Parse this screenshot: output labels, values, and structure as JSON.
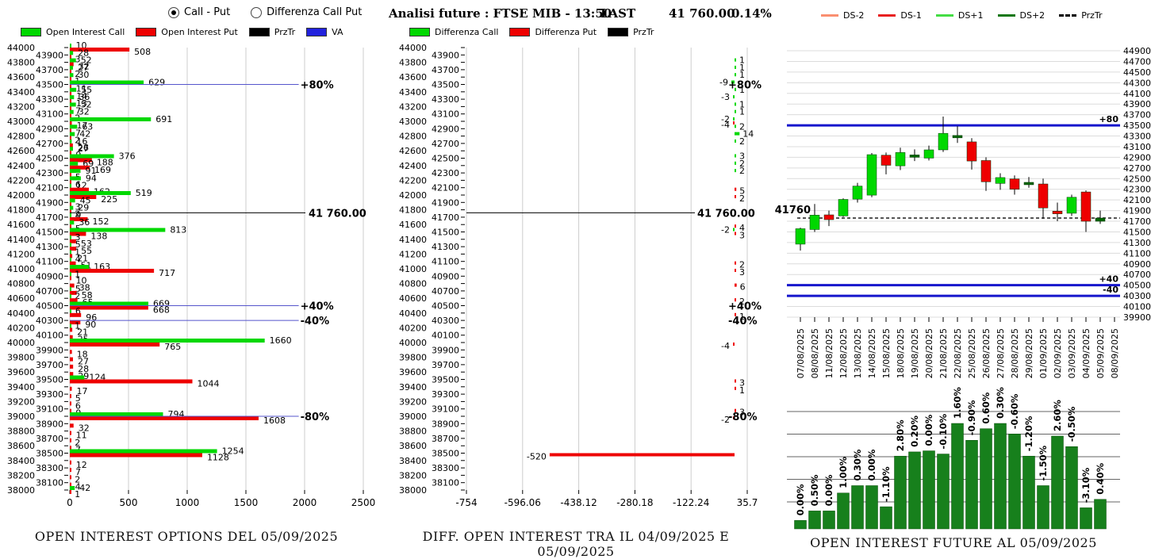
{
  "controls": {
    "radios": [
      {
        "label": "Call - Put",
        "selected": true
      },
      {
        "label": "Differenza Call Put",
        "selected": false
      }
    ]
  },
  "header": {
    "analisi": "Analisi future : FTSE MIB - 13:50",
    "last_label": "LAST",
    "last_value": "41 760.00",
    "last_change": "0.14%"
  },
  "legends": {
    "left": [
      {
        "label": "Open Interest Call",
        "color": "#00d800",
        "kind": "box"
      },
      {
        "label": "Open Interest Put",
        "color": "#ee0000",
        "kind": "box"
      },
      {
        "label": "PrzTr",
        "color": "#000000",
        "kind": "box"
      },
      {
        "label": "VA",
        "color": "#2222dd",
        "kind": "box"
      }
    ],
    "mid": [
      {
        "label": "Differenza Call",
        "color": "#00d800",
        "kind": "box"
      },
      {
        "label": "Differenza Put",
        "color": "#ee0000",
        "kind": "box"
      },
      {
        "label": "PrzTr",
        "color": "#000000",
        "kind": "box"
      }
    ],
    "right": [
      {
        "label": "DS-2",
        "color": "#fa8f70",
        "kind": "line"
      },
      {
        "label": "DS-1",
        "color": "#e82020",
        "kind": "line"
      },
      {
        "label": "DS+1",
        "color": "#44dd44",
        "kind": "line"
      },
      {
        "label": "DS+2",
        "color": "#117711",
        "kind": "line"
      },
      {
        "label": "PrzTr",
        "color": "#000000",
        "kind": "dash"
      }
    ]
  },
  "colors": {
    "call": "#00d800",
    "put": "#ee0000",
    "przt": "#000000",
    "va_line": "#5555cc",
    "blue_level": "#1515cc",
    "dark_candle": "#006600",
    "future_bar": "#17801c",
    "grid": "#cccccc",
    "grid_dark": "#666666"
  },
  "chart_data": [
    {
      "type": "bar",
      "orientation": "horizontal",
      "title": "OPEN INTEREST OPTIONS DEL 05/09/2025",
      "xlim": [
        0,
        2500
      ],
      "xticks": [
        0,
        500,
        1000,
        1500,
        2000,
        2500
      ],
      "ylim": [
        38000,
        44000
      ],
      "ystep": 100,
      "series": [
        "Open Interest Call",
        "Open Interest Put"
      ],
      "rows": [
        [
          44000,
          10,
          508
        ],
        [
          43900,
          28,
          3
        ],
        [
          43800,
          52,
          32
        ],
        [
          43700,
          27,
          2
        ],
        [
          43600,
          30,
          1
        ],
        [
          43500,
          629,
          11
        ],
        [
          43400,
          55,
          14
        ],
        [
          43300,
          36,
          13
        ],
        [
          43200,
          52,
          7
        ],
        [
          43100,
          32,
          2
        ],
        [
          43000,
          691,
          17
        ],
        [
          42900,
          63,
          7
        ],
        [
          42800,
          42,
          2
        ],
        [
          42700,
          16,
          26
        ],
        [
          42600,
          27,
          9
        ],
        [
          42500,
          376,
          188
        ],
        [
          42400,
          69,
          169
        ],
        [
          42300,
          91,
          5
        ],
        [
          42200,
          94,
          6
        ],
        [
          42100,
          12,
          162
        ],
        [
          42000,
          519,
          225
        ],
        [
          41900,
          45,
          3
        ],
        [
          41800,
          29,
          2
        ],
        [
          41700,
          9,
          152
        ],
        [
          41600,
          36,
          5
        ],
        [
          41500,
          813,
          138
        ],
        [
          41400,
          3,
          53
        ],
        [
          41300,
          5,
          55
        ],
        [
          41200,
          1,
          21
        ],
        [
          41100,
          4,
          51
        ],
        [
          41000,
          163,
          717
        ],
        [
          40900,
          1,
          10
        ],
        [
          40800,
          0,
          38
        ],
        [
          40700,
          5,
          58
        ],
        [
          40600,
          2,
          65
        ],
        [
          40500,
          669,
          668
        ],
        [
          40400,
          6,
          96
        ],
        [
          40300,
          0,
          90
        ],
        [
          40200,
          1,
          21
        ],
        [
          40100,
          0,
          25
        ],
        [
          40000,
          1660,
          765
        ],
        [
          39900,
          0,
          18
        ],
        [
          39800,
          0,
          27
        ],
        [
          39700,
          0,
          28
        ],
        [
          39600,
          0,
          29
        ],
        [
          39500,
          124,
          1044
        ],
        [
          39400,
          0,
          17
        ],
        [
          39300,
          0,
          5
        ],
        [
          39200,
          0,
          6
        ],
        [
          39100,
          0,
          9
        ],
        [
          39000,
          794,
          1608
        ],
        [
          38900,
          0,
          32
        ],
        [
          38800,
          0,
          11
        ],
        [
          38700,
          0,
          2
        ],
        [
          38600,
          0,
          7
        ],
        [
          38500,
          1254,
          1128
        ],
        [
          38400,
          0,
          12
        ],
        [
          38300,
          0,
          7
        ],
        [
          38200,
          0,
          2
        ],
        [
          38100,
          0,
          4
        ],
        [
          38000,
          42,
          1
        ]
      ],
      "va_lines": [
        {
          "y": 43500,
          "label": "+80%"
        },
        {
          "y": 40500,
          "label": "+40%"
        },
        {
          "y": 40300,
          "label": "-40%"
        },
        {
          "y": 39000,
          "label": "-80%"
        }
      ],
      "prz_line": {
        "y": 41760,
        "label": "41 760.00"
      }
    },
    {
      "type": "bar",
      "orientation": "horizontal",
      "title": "DIFF. OPEN INTEREST TRA IL 04/09/2025 E 05/09/2025",
      "xticks": [
        "-754",
        "-596.06",
        "-438.12",
        "-280.18",
        "-122.24",
        "35.7"
      ],
      "ylim": [
        38000,
        44000
      ],
      "ystep": 100,
      "series": [
        "Differenza Call",
        "Differenza Put"
      ],
      "rows": [
        {
          "s": 43800,
          "v": 1,
          "k": "c"
        },
        {
          "s": 43700,
          "v": 1,
          "k": "c"
        },
        {
          "s": 43600,
          "v": 1,
          "k": "c"
        },
        {
          "s": 43500,
          "v": -9,
          "k": "c"
        },
        {
          "s": 43400,
          "v": 1,
          "k": "c"
        },
        {
          "s": 43300,
          "v": -3,
          "k": "c"
        },
        {
          "s": 43200,
          "v": 1,
          "k": "c"
        },
        {
          "s": 43100,
          "v": 1,
          "k": "c"
        },
        {
          "s": 43000,
          "v": -2,
          "k": "c"
        },
        {
          "s": 43000,
          "v": -4,
          "k": "p"
        },
        {
          "s": 42900,
          "v": 2,
          "k": "c"
        },
        {
          "s": 42800,
          "v": 14,
          "k": "c"
        },
        {
          "s": 42700,
          "v": 2,
          "k": "c"
        },
        {
          "s": 42500,
          "v": 3,
          "k": "c"
        },
        {
          "s": 42400,
          "v": 2,
          "k": "c"
        },
        {
          "s": 42300,
          "v": 2,
          "k": "c"
        },
        {
          "s": 42100,
          "v": 5,
          "k": "p"
        },
        {
          "s": 42000,
          "v": 2,
          "k": "p"
        },
        {
          "s": 41600,
          "v": 4,
          "k": "p"
        },
        {
          "s": 41500,
          "v": -2,
          "k": "c"
        },
        {
          "s": 41500,
          "v": 3,
          "k": "p"
        },
        {
          "s": 41100,
          "v": 2,
          "k": "p"
        },
        {
          "s": 41000,
          "v": 3,
          "k": "p"
        },
        {
          "s": 40800,
          "v": 6,
          "k": "p"
        },
        {
          "s": 40600,
          "v": 2,
          "k": "p"
        },
        {
          "s": 40400,
          "v": 1,
          "k": "p"
        },
        {
          "s": 40000,
          "v": -4,
          "k": "p"
        },
        {
          "s": 39500,
          "v": 3,
          "k": "p"
        },
        {
          "s": 39400,
          "v": 1,
          "k": "p"
        },
        {
          "s": 39100,
          "v": 3,
          "k": "p"
        },
        {
          "s": 39000,
          "v": -2,
          "k": "p"
        },
        {
          "s": 38500,
          "v": -520,
          "k": "p"
        }
      ],
      "va_labels": [
        {
          "y": 43500,
          "label": "+80%"
        },
        {
          "y": 40500,
          "label": "+40%"
        },
        {
          "y": 40300,
          "label": "-40%"
        },
        {
          "y": 39000,
          "label": "-80%"
        }
      ],
      "prz_line": {
        "y": 41760,
        "label": "41 760.00"
      }
    },
    {
      "type": "candlestick",
      "ylim": [
        39900,
        44900
      ],
      "ystep": 200,
      "dates": [
        "07/08/2025",
        "08/08/2025",
        "11/08/2025",
        "12/08/2025",
        "13/08/2025",
        "14/08/2025",
        "15/08/2025",
        "18/08/2025",
        "19/08/2025",
        "20/08/2025",
        "21/08/2025",
        "22/08/2025",
        "25/08/2025",
        "26/08/2025",
        "27/08/2025",
        "28/08/2025",
        "29/08/2025",
        "01/09/2025",
        "02/09/2025",
        "03/09/2025",
        "04/09/2025",
        "05/09/2025",
        "08/09/2025"
      ],
      "candles": [
        [
          41270,
          41580,
          41150,
          41560,
          "g"
        ],
        [
          41545,
          42025,
          41500,
          41815,
          "g"
        ],
        [
          41820,
          41900,
          41610,
          41730,
          "r"
        ],
        [
          41800,
          42130,
          41780,
          42110,
          "g"
        ],
        [
          42115,
          42420,
          42050,
          42360,
          "g"
        ],
        [
          42190,
          42980,
          42150,
          42950,
          "g"
        ],
        [
          42940,
          42990,
          42580,
          42750,
          "r"
        ],
        [
          42740,
          43080,
          42660,
          42990,
          "g"
        ],
        [
          42920,
          43050,
          42830,
          42945,
          "d"
        ],
        [
          42885,
          43120,
          42840,
          43040,
          "g"
        ],
        [
          43040,
          43665,
          43000,
          43350,
          "g"
        ],
        [
          43290,
          43485,
          43170,
          43310,
          "d"
        ],
        [
          43190,
          43260,
          42670,
          42830,
          "r"
        ],
        [
          42840,
          42900,
          42270,
          42440,
          "r"
        ],
        [
          42410,
          42600,
          42290,
          42520,
          "g"
        ],
        [
          42495,
          42560,
          42200,
          42300,
          "r"
        ],
        [
          42400,
          42530,
          42330,
          42430,
          "d"
        ],
        [
          42400,
          42500,
          41750,
          41950,
          "r"
        ],
        [
          41890,
          42050,
          41700,
          41840,
          "r"
        ],
        [
          41850,
          42200,
          41800,
          42150,
          "g"
        ],
        [
          42250,
          42280,
          41500,
          41700,
          "r"
        ],
        [
          41700,
          41900,
          41650,
          41760,
          "d"
        ]
      ],
      "levels": [
        {
          "y": 43500,
          "label": "+80"
        },
        {
          "y": 40500,
          "label": "+40"
        },
        {
          "y": 40300,
          "label": "-40"
        }
      ],
      "prz_line": {
        "y": 41760,
        "label": "41760"
      }
    },
    {
      "type": "bar",
      "title": "OPEN INTEREST FUTURE AL 05/09/2025",
      "labels": [
        "0.00%",
        "0.50%",
        "0.00%",
        "1.00%",
        "0.30%",
        "0.00%",
        "-1.10%",
        "2.80%",
        "0.20%",
        "0.00%",
        "-0.10%",
        "1.60%",
        "-0.90%",
        "0.60%",
        "0.30%",
        "-0.60%",
        "-1.20%",
        "-1.50%",
        "2.60%",
        "-0.50%",
        "-3.10%",
        "0.40%"
      ],
      "values_rel": [
        8,
        17,
        17,
        34,
        41,
        41,
        21,
        69,
        73,
        74,
        71,
        100,
        84,
        95,
        100,
        90,
        69,
        41,
        88,
        78,
        20,
        28
      ]
    }
  ]
}
